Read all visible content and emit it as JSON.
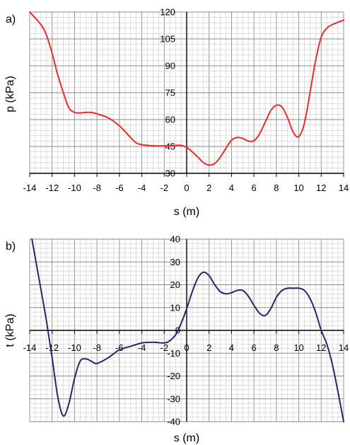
{
  "chart_data": [
    {
      "panel": "a)",
      "type": "line",
      "xlabel": "s (m)",
      "ylabel": "p  (kPa)",
      "xlim": [
        -14,
        14
      ],
      "ylim": [
        30,
        120
      ],
      "xticks": [
        "-14",
        "-12",
        "-10",
        "-8",
        "-6",
        "-4",
        "-2",
        "0",
        "2",
        "4",
        "6",
        "8",
        "10",
        "12",
        "14"
      ],
      "yticks": [
        "30",
        "45",
        "60",
        "75",
        "90",
        "105",
        "120"
      ],
      "grid": true,
      "color": "#ee2a2a",
      "series": [
        {
          "x": [
            -14,
            -13,
            -12.5,
            -12,
            -11.5,
            -11,
            -10.5,
            -10,
            -9.5,
            -9,
            -8.5,
            -8,
            -7,
            -6,
            -5,
            -4.5,
            -4,
            -3,
            -2,
            -1,
            -0.5,
            0,
            0.5,
            1,
            1.5,
            2,
            2.5,
            3,
            3.5,
            4,
            4.5,
            5,
            5.5,
            6,
            6.5,
            7,
            7.5,
            8,
            8.5,
            9,
            9.5,
            10,
            10.5,
            11,
            11.5,
            12,
            12.5,
            13,
            14
          ],
          "y": [
            120,
            113,
            107,
            97,
            85,
            75,
            66.5,
            64,
            63.7,
            64,
            64,
            63.2,
            61,
            56.5,
            50,
            47,
            46,
            45.4,
            45.3,
            45.6,
            45.6,
            44.5,
            42,
            39,
            36,
            34.6,
            35.5,
            39,
            44,
            48.5,
            50,
            49.5,
            48,
            48.2,
            52,
            58.5,
            65,
            68,
            67,
            61,
            53,
            50.5,
            58,
            75,
            93,
            106,
            111,
            113,
            115.5
          ]
        }
      ]
    },
    {
      "panel": "b)",
      "type": "line",
      "xlabel": "s (m)",
      "ylabel": "t  (kPa)",
      "xlim": [
        -14,
        14
      ],
      "ylim": [
        -40,
        40
      ],
      "xticks": [
        "-14",
        "-12",
        "-10",
        "-8",
        "-6",
        "-4",
        "-2",
        "0",
        "2",
        "4",
        "6",
        "8",
        "10",
        "12",
        "14"
      ],
      "yticks": [
        "-40",
        "-30",
        "-20",
        "-10",
        "0",
        "10",
        "20",
        "30",
        "40"
      ],
      "grid": true,
      "color": "#1f2a6b",
      "series": [
        {
          "x": [
            -13.8,
            -13,
            -12.5,
            -12,
            -11.5,
            -11,
            -10.5,
            -10,
            -9.5,
            -9,
            -8.5,
            -8,
            -7,
            -6,
            -5,
            -4,
            -3,
            -2,
            -1.5,
            -1,
            -0.5,
            0,
            0.5,
            1,
            1.5,
            2,
            2.5,
            3,
            3.5,
            4,
            4.5,
            5,
            5.5,
            6,
            6.5,
            7,
            7.5,
            8,
            8.5,
            9,
            9.5,
            10,
            10.5,
            11,
            11.5,
            12,
            12.5,
            13,
            13.5,
            14
          ],
          "y": [
            40,
            18,
            4,
            -12,
            -29,
            -37.5,
            -32,
            -21,
            -13.5,
            -12.5,
            -13.5,
            -14.5,
            -12,
            -8.5,
            -7,
            -5.5,
            -5.2,
            -5.5,
            -4.5,
            -2,
            3,
            9.5,
            17,
            23,
            25.5,
            24,
            20,
            17,
            16,
            16.5,
            17.5,
            17.5,
            15,
            11,
            7.5,
            6.5,
            9.5,
            14.5,
            17.5,
            18.5,
            18.5,
            18.5,
            17.5,
            14,
            8,
            0,
            -6,
            -15,
            -27,
            -40
          ]
        }
      ]
    }
  ]
}
